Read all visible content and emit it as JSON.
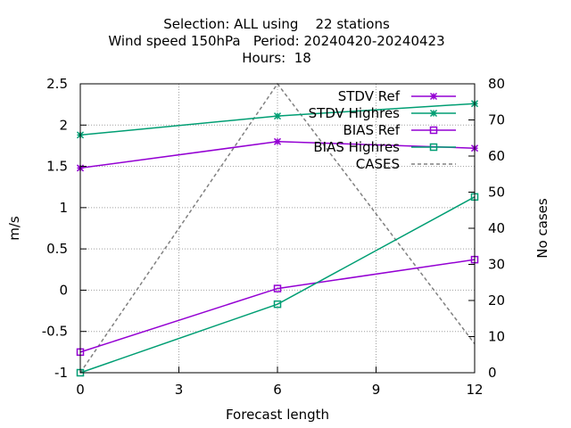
{
  "chart_data": {
    "type": "line",
    "title_lines": [
      "Selection: ALL using    22 stations",
      "Wind speed 150hPa   Period: 20240420-20240423",
      "Hours:  18"
    ],
    "xlabel": "Forecast length",
    "ylabel": "m/s",
    "y2label": "No cases",
    "x": [
      0,
      6,
      12
    ],
    "xticks": [
      0,
      3,
      6,
      9,
      12
    ],
    "xlim": [
      0,
      12
    ],
    "ylim": [
      -1,
      2.5
    ],
    "yticks": [
      -1,
      -0.5,
      0,
      0.5,
      1,
      1.5,
      2,
      2.5
    ],
    "ytick_labels": [
      "-1",
      "-0.5",
      "0",
      "0.5",
      "1",
      "1.5",
      "2",
      "2.5"
    ],
    "y2lim": [
      0,
      80
    ],
    "y2ticks": [
      0,
      10,
      20,
      30,
      40,
      50,
      60,
      70,
      80
    ],
    "grid": true,
    "legend_position": "top-right",
    "series": [
      {
        "name": "STDV Ref",
        "axis": "y1",
        "color": "#9400d3",
        "marker": "star",
        "dashed": false,
        "values": [
          1.48,
          1.8,
          1.72
        ]
      },
      {
        "name": "STDV Highres",
        "axis": "y1",
        "color": "#009e73",
        "marker": "star",
        "dashed": false,
        "values": [
          1.88,
          2.11,
          2.26
        ]
      },
      {
        "name": "BIAS Ref",
        "axis": "y1",
        "color": "#9400d3",
        "marker": "square",
        "dashed": false,
        "values": [
          -0.75,
          0.02,
          0.37
        ]
      },
      {
        "name": "BIAS Highres",
        "axis": "y1",
        "color": "#009e73",
        "marker": "square",
        "dashed": false,
        "values": [
          -1.0,
          -0.17,
          1.13
        ]
      },
      {
        "name": "CASES",
        "axis": "y2",
        "color": "#808080",
        "marker": "none",
        "dashed": true,
        "values": [
          0,
          80,
          8
        ]
      }
    ]
  }
}
